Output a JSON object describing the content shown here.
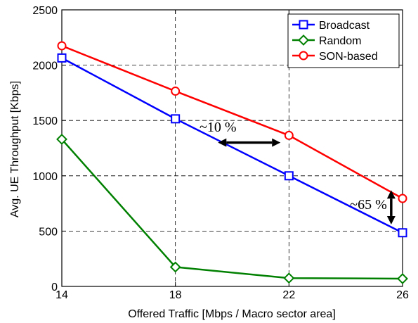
{
  "chart_data": {
    "type": "line",
    "title": "",
    "xlabel": "Offered Traffic [Mbps / Macro sector area]",
    "ylabel": "Avg. UE Throughput [Kbps]",
    "x": [
      14,
      18,
      22,
      26
    ],
    "xticks": [
      "14",
      "18",
      "22",
      "26"
    ],
    "yticks": [
      "0",
      "500",
      "1000",
      "1500",
      "2000",
      "2500"
    ],
    "xlim": [
      14,
      26
    ],
    "ylim": [
      0,
      2500
    ],
    "grid": true,
    "legend_position": "top-right",
    "series": [
      {
        "name": "Broadcast",
        "color": "#0000ff",
        "marker": "square",
        "values": [
          2065,
          1515,
          1000,
          485
        ]
      },
      {
        "name": "Random",
        "color": "#008000",
        "marker": "diamond",
        "values": [
          1330,
          175,
          75,
          70
        ]
      },
      {
        "name": "SON-based",
        "color": "#ff0000",
        "marker": "circle",
        "values": [
          2175,
          1765,
          1365,
          795
        ]
      }
    ],
    "annotations": [
      {
        "text": "~10 %",
        "x": 19.5,
        "y": 1400,
        "arrow": {
          "type": "double",
          "x1": 19.5,
          "y1": 1300,
          "x2": 21.7,
          "y2": 1300
        }
      },
      {
        "text": "~65 %",
        "x": 24.8,
        "y": 700,
        "arrow": {
          "type": "double",
          "x1": 25.6,
          "y1": 560,
          "x2": 25.6,
          "y2": 870
        }
      }
    ]
  }
}
